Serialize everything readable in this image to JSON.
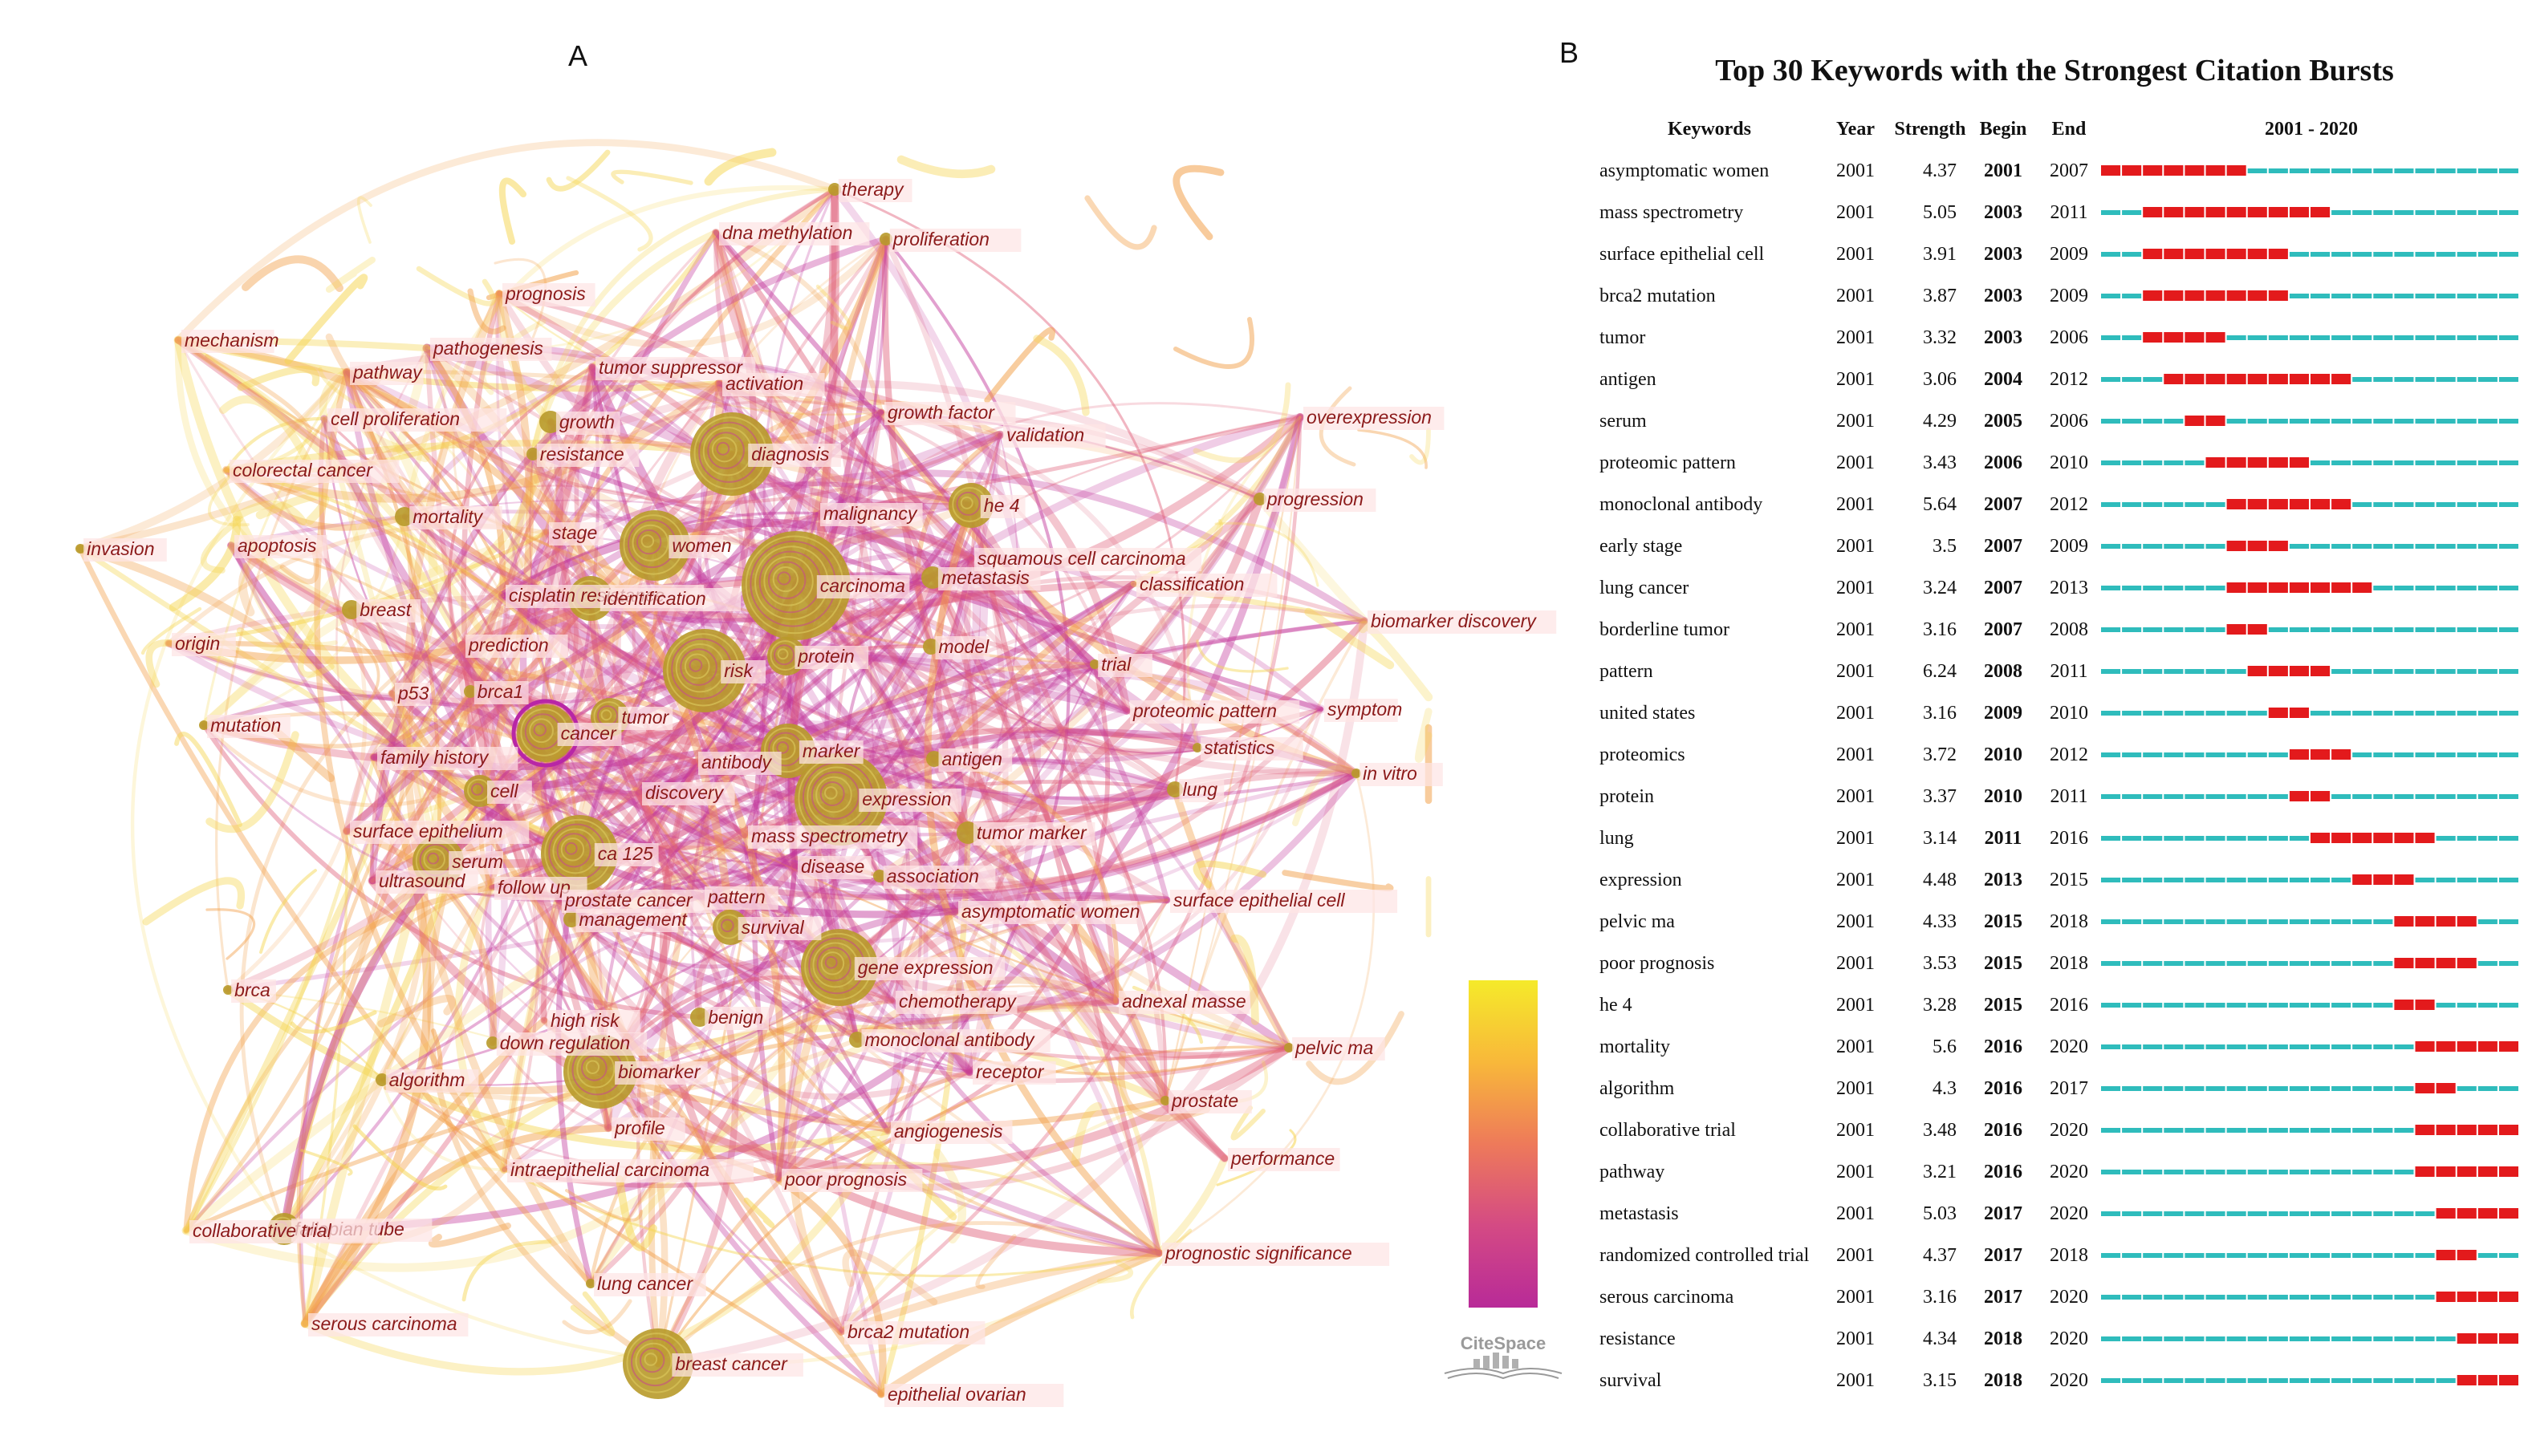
{
  "panel_a": {
    "label": "A",
    "brand": "CiteSpace",
    "colors": {
      "edge_purple": "#c2369a",
      "edge_pink": "#e0607a",
      "edge_orange": "#f2a04a",
      "edge_yellow": "#f5d550",
      "node_fill": "#b89a2a",
      "label_text": "#8b1a1a",
      "label_bg": "#fde4e4"
    },
    "legend_gradient": [
      "#f5ea2a",
      "#f8b83a",
      "#ee7a5a",
      "#d44a84",
      "#b82a98"
    ],
    "keywords": [
      "therapy",
      "dna methylation",
      "proliferation",
      "prognosis",
      "mechanism",
      "pathogenesis",
      "pathway",
      "tumor suppressor",
      "activation",
      "cell proliferation",
      "growth",
      "diagnosis",
      "growth factor",
      "validation",
      "overexpression",
      "colorectal cancer",
      "resistance",
      "mortality",
      "he 4",
      "progression",
      "malignancy",
      "women",
      "invasion",
      "apoptosis",
      "stage",
      "squamous cell carcinoma",
      "carcinoma",
      "metastasis",
      "classification",
      "breast",
      "cisplatin resistance",
      "identification",
      "biomarker discovery",
      "origin",
      "prediction",
      "protein",
      "model",
      "risk",
      "trial",
      "p53",
      "brca1",
      "tumor",
      "proteomic pattern",
      "symptom",
      "mutation",
      "cancer",
      "marker",
      "antigen",
      "statistics",
      "family history",
      "antibody",
      "in vitro",
      "cell",
      "discovery",
      "lung",
      "expression",
      "surface epithelium",
      "tumor marker",
      "mass spectrometry",
      "serum",
      "ca 125",
      "disease",
      "ultrasound",
      "follow up",
      "association",
      "prostate cancer",
      "pattern",
      "surface epithelial cell",
      "management",
      "survival",
      "asymptomatic women",
      "gene expression",
      "brca",
      "chemotherapy",
      "adnexal masse",
      "high risk",
      "benign",
      "down regulation",
      "monoclonal antibody",
      "pelvic ma",
      "receptor",
      "algorithm",
      "biomarker",
      "prostate",
      "profile",
      "angiogenesis",
      "performance",
      "intraepithelial carcinoma",
      "poor prognosis",
      "fallopian tube",
      "collaborative trial",
      "prognostic significance",
      "lung cancer",
      "serous carcinoma",
      "brca2 mutation",
      "breast cancer",
      "epithelial ovarian"
    ]
  },
  "panel_b": {
    "label": "B",
    "title": "Top 30 Keywords with the Strongest Citation Bursts",
    "headers": {
      "keywords": "Keywords",
      "year": "Year",
      "strength": "Strength",
      "begin": "Begin",
      "end": "End",
      "range": "2001 - 2020"
    },
    "colors": {
      "burst": "#e31a1c",
      "base": "#2fbcbc"
    },
    "chart_data": {
      "type": "table",
      "timeline": [
        2001,
        2020
      ],
      "rows": [
        {
          "keyword": "asymptomatic women",
          "year": "2001",
          "strength": "4.37",
          "begin": "2001",
          "end": "2007"
        },
        {
          "keyword": "mass spectrometry",
          "year": "2001",
          "strength": "5.05",
          "begin": "2003",
          "end": "2011"
        },
        {
          "keyword": "surface epithelial cell",
          "year": "2001",
          "strength": "3.91",
          "begin": "2003",
          "end": "2009"
        },
        {
          "keyword": "brca2 mutation",
          "year": "2001",
          "strength": "3.87",
          "begin": "2003",
          "end": "2009"
        },
        {
          "keyword": "tumor",
          "year": "2001",
          "strength": "3.32",
          "begin": "2003",
          "end": "2006"
        },
        {
          "keyword": "antigen",
          "year": "2001",
          "strength": "3.06",
          "begin": "2004",
          "end": "2012"
        },
        {
          "keyword": "serum",
          "year": "2001",
          "strength": "4.29",
          "begin": "2005",
          "end": "2006"
        },
        {
          "keyword": "proteomic pattern",
          "year": "2001",
          "strength": "3.43",
          "begin": "2006",
          "end": "2010"
        },
        {
          "keyword": "monoclonal antibody",
          "year": "2001",
          "strength": "5.64",
          "begin": "2007",
          "end": "2012"
        },
        {
          "keyword": "early stage",
          "year": "2001",
          "strength": "3.5",
          "begin": "2007",
          "end": "2009"
        },
        {
          "keyword": "lung cancer",
          "year": "2001",
          "strength": "3.24",
          "begin": "2007",
          "end": "2013"
        },
        {
          "keyword": "borderline tumor",
          "year": "2001",
          "strength": "3.16",
          "begin": "2007",
          "end": "2008"
        },
        {
          "keyword": "pattern",
          "year": "2001",
          "strength": "6.24",
          "begin": "2008",
          "end": "2011"
        },
        {
          "keyword": "united states",
          "year": "2001",
          "strength": "3.16",
          "begin": "2009",
          "end": "2010"
        },
        {
          "keyword": "proteomics",
          "year": "2001",
          "strength": "3.72",
          "begin": "2010",
          "end": "2012"
        },
        {
          "keyword": "protein",
          "year": "2001",
          "strength": "3.37",
          "begin": "2010",
          "end": "2011"
        },
        {
          "keyword": "lung",
          "year": "2001",
          "strength": "3.14",
          "begin": "2011",
          "end": "2016"
        },
        {
          "keyword": "expression",
          "year": "2001",
          "strength": "4.48",
          "begin": "2013",
          "end": "2015"
        },
        {
          "keyword": "pelvic ma",
          "year": "2001",
          "strength": "4.33",
          "begin": "2015",
          "end": "2018"
        },
        {
          "keyword": "poor prognosis",
          "year": "2001",
          "strength": "3.53",
          "begin": "2015",
          "end": "2018"
        },
        {
          "keyword": "he 4",
          "year": "2001",
          "strength": "3.28",
          "begin": "2015",
          "end": "2016"
        },
        {
          "keyword": "mortality",
          "year": "2001",
          "strength": "5.6",
          "begin": "2016",
          "end": "2020"
        },
        {
          "keyword": "algorithm",
          "year": "2001",
          "strength": "4.3",
          "begin": "2016",
          "end": "2017"
        },
        {
          "keyword": "collaborative trial",
          "year": "2001",
          "strength": "3.48",
          "begin": "2016",
          "end": "2020"
        },
        {
          "keyword": "pathway",
          "year": "2001",
          "strength": "3.21",
          "begin": "2016",
          "end": "2020"
        },
        {
          "keyword": "metastasis",
          "year": "2001",
          "strength": "5.03",
          "begin": "2017",
          "end": "2020"
        },
        {
          "keyword": "randomized controlled trial",
          "year": "2001",
          "strength": "4.37",
          "begin": "2017",
          "end": "2018"
        },
        {
          "keyword": "serous carcinoma",
          "year": "2001",
          "strength": "3.16",
          "begin": "2017",
          "end": "2020"
        },
        {
          "keyword": "resistance",
          "year": "2001",
          "strength": "4.34",
          "begin": "2018",
          "end": "2020"
        },
        {
          "keyword": "survival",
          "year": "2001",
          "strength": "3.15",
          "begin": "2018",
          "end": "2020"
        }
      ]
    }
  }
}
